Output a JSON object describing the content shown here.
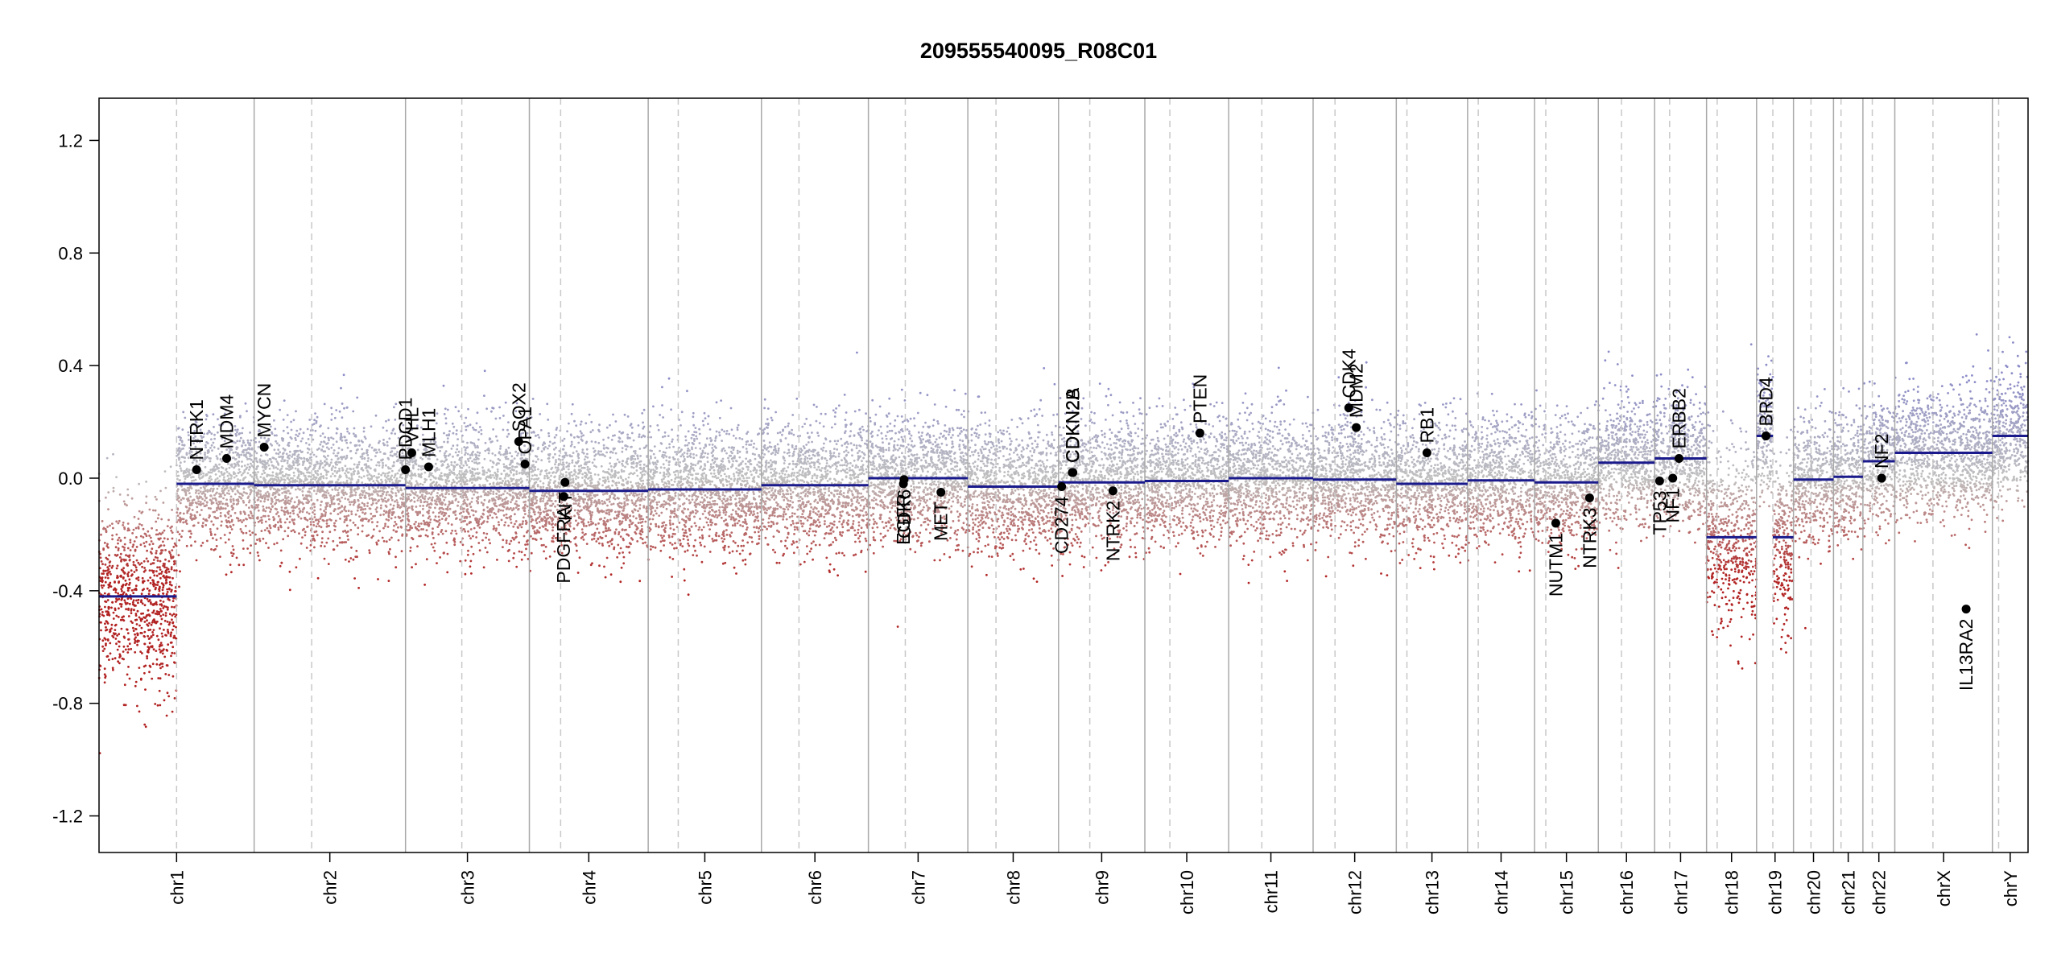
{
  "chart_data": {
    "type": "scatter",
    "title": "209555540095_R08C01",
    "ylim": [
      -1.33,
      1.35
    ],
    "yticks": [
      {
        "value": 1.2,
        "label": "1.2"
      },
      {
        "value": 0.8,
        "label": "0.8"
      },
      {
        "value": 0.4,
        "label": "0.4"
      },
      {
        "value": 0.0,
        "label": "0.0"
      },
      {
        "value": -0.4,
        "label": "-0.4"
      },
      {
        "value": -0.8,
        "label": "-0.8"
      },
      {
        "value": -1.2,
        "label": "-1.2"
      }
    ],
    "chromosomes": [
      {
        "name": "chr1",
        "start": 0,
        "end": 248,
        "centromere": 124,
        "segments": [
          {
            "s": 0,
            "e": 124,
            "v": -0.42
          },
          {
            "s": 124,
            "e": 248,
            "v": -0.02
          }
        ]
      },
      {
        "name": "chr2",
        "start": 248,
        "end": 490,
        "centromere": 340,
        "segments": [
          {
            "s": 248,
            "e": 490,
            "v": -0.025
          }
        ]
      },
      {
        "name": "chr3",
        "start": 490,
        "end": 688,
        "centromere": 580,
        "segments": [
          {
            "s": 490,
            "e": 688,
            "v": -0.035
          }
        ]
      },
      {
        "name": "chr4",
        "start": 688,
        "end": 878,
        "centromere": 738,
        "segments": [
          {
            "s": 688,
            "e": 878,
            "v": -0.045
          }
        ]
      },
      {
        "name": "chr5",
        "start": 878,
        "end": 1059,
        "centromere": 926,
        "segments": [
          {
            "s": 878,
            "e": 1059,
            "v": -0.04
          }
        ]
      },
      {
        "name": "chr6",
        "start": 1059,
        "end": 1230,
        "centromere": 1119,
        "segments": [
          {
            "s": 1059,
            "e": 1230,
            "v": -0.025
          }
        ]
      },
      {
        "name": "chr7",
        "start": 1230,
        "end": 1389,
        "centromere": 1289,
        "segments": [
          {
            "s": 1230,
            "e": 1389,
            "v": 0.0
          }
        ]
      },
      {
        "name": "chr8",
        "start": 1389,
        "end": 1534,
        "centromere": 1434,
        "segments": [
          {
            "s": 1389,
            "e": 1534,
            "v": -0.03
          }
        ]
      },
      {
        "name": "chr9",
        "start": 1534,
        "end": 1672,
        "centromere": 1584,
        "segments": [
          {
            "s": 1534,
            "e": 1672,
            "v": -0.015
          }
        ]
      },
      {
        "name": "chr10",
        "start": 1672,
        "end": 1806,
        "centromere": 1712,
        "segments": [
          {
            "s": 1672,
            "e": 1806,
            "v": -0.01
          }
        ]
      },
      {
        "name": "chr11",
        "start": 1806,
        "end": 1941,
        "centromere": 1859,
        "segments": [
          {
            "s": 1806,
            "e": 1941,
            "v": 0.0
          }
        ]
      },
      {
        "name": "chr12",
        "start": 1941,
        "end": 2074,
        "centromere": 1976,
        "segments": [
          {
            "s": 1941,
            "e": 2074,
            "v": -0.005
          }
        ]
      },
      {
        "name": "chr13",
        "start": 2074,
        "end": 2188,
        "centromere": 2091,
        "segments": [
          {
            "s": 2074,
            "e": 2188,
            "v": -0.02
          }
        ]
      },
      {
        "name": "chr14",
        "start": 2188,
        "end": 2295,
        "centromere": 2205,
        "segments": [
          {
            "s": 2188,
            "e": 2295,
            "v": -0.008
          }
        ]
      },
      {
        "name": "chr15",
        "start": 2295,
        "end": 2397,
        "centromere": 2313,
        "segments": [
          {
            "s": 2295,
            "e": 2397,
            "v": -0.015
          }
        ]
      },
      {
        "name": "chr16",
        "start": 2397,
        "end": 2487,
        "centromere": 2434,
        "segments": [
          {
            "s": 2397,
            "e": 2487,
            "v": 0.055
          }
        ]
      },
      {
        "name": "chr17",
        "start": 2487,
        "end": 2570,
        "centromere": 2511,
        "segments": [
          {
            "s": 2487,
            "e": 2570,
            "v": 0.07
          }
        ]
      },
      {
        "name": "chr18",
        "start": 2570,
        "end": 2650,
        "centromere": 2587,
        "segments": [
          {
            "s": 2570,
            "e": 2650,
            "v": -0.21
          }
        ]
      },
      {
        "name": "chr19",
        "start": 2650,
        "end": 2709,
        "centromere": 2676,
        "segments": [
          {
            "s": 2650,
            "e": 2676,
            "v": 0.15
          },
          {
            "s": 2676,
            "e": 2709,
            "v": -0.21
          }
        ]
      },
      {
        "name": "chr20",
        "start": 2709,
        "end": 2773,
        "centromere": 2737,
        "segments": [
          {
            "s": 2709,
            "e": 2773,
            "v": -0.005
          }
        ]
      },
      {
        "name": "chr21",
        "start": 2773,
        "end": 2820,
        "centromere": 2785,
        "segments": [
          {
            "s": 2773,
            "e": 2820,
            "v": 0.005
          }
        ]
      },
      {
        "name": "chr22",
        "start": 2820,
        "end": 2871,
        "centromere": 2835,
        "segments": [
          {
            "s": 2820,
            "e": 2871,
            "v": 0.06
          }
        ]
      },
      {
        "name": "chrX",
        "start": 2871,
        "end": 3027,
        "centromere": 2932,
        "segments": [
          {
            "s": 2871,
            "e": 3027,
            "v": 0.09
          }
        ]
      },
      {
        "name": "chrY",
        "start": 3027,
        "end": 3084,
        "centromere": 3037,
        "segments": [
          {
            "s": 3027,
            "e": 3084,
            "v": 0.15
          }
        ]
      }
    ],
    "genes": [
      {
        "name": "NTRK1",
        "pos": 156,
        "value": 0.03,
        "label_side": "above"
      },
      {
        "name": "MDM4",
        "pos": 204,
        "value": 0.07,
        "label_side": "above"
      },
      {
        "name": "MYCN",
        "pos": 264,
        "value": 0.11,
        "label_side": "above"
      },
      {
        "name": "PDCD1",
        "pos": 490,
        "value": 0.03,
        "label_side": "above"
      },
      {
        "name": "VHL",
        "pos": 500,
        "value": 0.09,
        "label_side": "above"
      },
      {
        "name": "MLH1",
        "pos": 527,
        "value": 0.04,
        "label_side": "above"
      },
      {
        "name": "SOX2",
        "pos": 671,
        "value": 0.13,
        "label_side": "above"
      },
      {
        "name": "OPA1",
        "pos": 681,
        "value": 0.05,
        "label_side": "above"
      },
      {
        "name": "PDGFRA",
        "pos": 743,
        "value": -0.065,
        "label_side": "below"
      },
      {
        "name": "KIT",
        "pos": 745,
        "value": -0.015,
        "label_side": "below"
      },
      {
        "name": "EGFR",
        "pos": 1286,
        "value": -0.02,
        "label_side": "below"
      },
      {
        "name": "CDK6",
        "pos": 1287,
        "value": -0.005,
        "label_side": "below"
      },
      {
        "name": "MET",
        "pos": 1346,
        "value": -0.05,
        "label_side": "below"
      },
      {
        "name": "CD274",
        "pos": 1539,
        "value": -0.03,
        "label_side": "below"
      },
      {
        "name": "CDKN2A",
        "pos": 1556,
        "value": 0.02,
        "label_side": "above"
      },
      {
        "name": "CDKN2B",
        "pos": 1557,
        "value": 0.02,
        "label_side": "above"
      },
      {
        "name": "NTRK2",
        "pos": 1621,
        "value": -0.045,
        "label_side": "below"
      },
      {
        "name": "PTEN",
        "pos": 1760,
        "value": 0.16,
        "label_side": "above"
      },
      {
        "name": "CDK4",
        "pos": 1998,
        "value": 0.25,
        "label_side": "above"
      },
      {
        "name": "MDM2",
        "pos": 2010,
        "value": 0.18,
        "label_side": "above"
      },
      {
        "name": "RB1",
        "pos": 2123,
        "value": 0.09,
        "label_side": "above"
      },
      {
        "name": "NUTM1",
        "pos": 2329,
        "value": -0.16,
        "label_side": "below"
      },
      {
        "name": "NTRK3",
        "pos": 2383,
        "value": -0.07,
        "label_side": "below"
      },
      {
        "name": "TP53",
        "pos": 2495,
        "value": -0.01,
        "label_side": "below"
      },
      {
        "name": "NF1",
        "pos": 2516,
        "value": 0.0,
        "label_side": "below"
      },
      {
        "name": "ERBB2",
        "pos": 2526,
        "value": 0.07,
        "label_side": "above"
      },
      {
        "name": "BRD4",
        "pos": 2665,
        "value": 0.15,
        "label_side": "above"
      },
      {
        "name": "NF2",
        "pos": 2850,
        "value": 0.0,
        "label_side": "above"
      },
      {
        "name": "IL13RA2",
        "pos": 2985,
        "value": -0.465,
        "label_side": "below"
      }
    ],
    "colors": {
      "segment": "#1a1a8c",
      "gain": "#8c8cc8",
      "neutral": "#c0c0c0",
      "loss": "#b22222",
      "chrom_border": "#a9a9a9",
      "centromere": "#c8c8c8"
    }
  }
}
